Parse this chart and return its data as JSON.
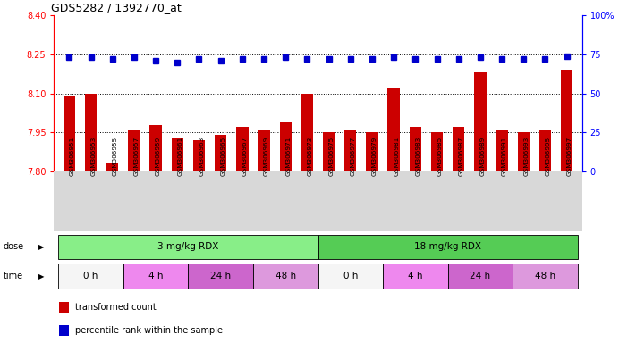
{
  "title": "GDS5282 / 1392770_at",
  "samples": [
    "GSM306951",
    "GSM306953",
    "GSM306955",
    "GSM306957",
    "GSM306959",
    "GSM306961",
    "GSM306963",
    "GSM306965",
    "GSM306967",
    "GSM306969",
    "GSM306971",
    "GSM306973",
    "GSM306975",
    "GSM306977",
    "GSM306979",
    "GSM306981",
    "GSM306983",
    "GSM306985",
    "GSM306987",
    "GSM306989",
    "GSM306991",
    "GSM306993",
    "GSM306995",
    "GSM306997"
  ],
  "bar_values": [
    8.09,
    8.1,
    7.83,
    7.96,
    7.98,
    7.93,
    7.92,
    7.94,
    7.97,
    7.96,
    7.99,
    8.1,
    7.95,
    7.96,
    7.95,
    8.12,
    7.97,
    7.95,
    7.97,
    8.18,
    7.96,
    7.95,
    7.96,
    8.19
  ],
  "percentile_values": [
    73,
    73,
    72,
    73,
    71,
    70,
    72,
    71,
    72,
    72,
    73,
    72,
    72,
    72,
    72,
    73,
    72,
    72,
    72,
    73,
    72,
    72,
    72,
    74
  ],
  "bar_color": "#cc0000",
  "percentile_color": "#0000cc",
  "ymin": 7.8,
  "ymax": 8.4,
  "yticks": [
    7.8,
    7.95,
    8.1,
    8.25,
    8.4
  ],
  "right_yticks": [
    0,
    25,
    50,
    75,
    100
  ],
  "right_yticklabels": [
    "0",
    "25",
    "50",
    "75",
    "100%"
  ],
  "hlines": [
    7.95,
    8.1,
    8.25
  ],
  "dose_groups": [
    {
      "label": "3 mg/kg RDX",
      "start": 0,
      "end": 11,
      "color": "#88ee88"
    },
    {
      "label": "18 mg/kg RDX",
      "start": 12,
      "end": 23,
      "color": "#55cc55"
    }
  ],
  "time_groups": [
    {
      "label": "0 h",
      "start": 0,
      "end": 2,
      "color": "#f5f5f5"
    },
    {
      "label": "4 h",
      "start": 3,
      "end": 5,
      "color": "#ee88ee"
    },
    {
      "label": "24 h",
      "start": 6,
      "end": 8,
      "color": "#cc66cc"
    },
    {
      "label": "48 h",
      "start": 9,
      "end": 11,
      "color": "#dd99dd"
    },
    {
      "label": "0 h",
      "start": 12,
      "end": 14,
      "color": "#f5f5f5"
    },
    {
      "label": "4 h",
      "start": 15,
      "end": 17,
      "color": "#ee88ee"
    },
    {
      "label": "24 h",
      "start": 18,
      "end": 20,
      "color": "#cc66cc"
    },
    {
      "label": "48 h",
      "start": 21,
      "end": 23,
      "color": "#dd99dd"
    }
  ],
  "legend_items": [
    {
      "label": "transformed count",
      "color": "#cc0000"
    },
    {
      "label": "percentile rank within the sample",
      "color": "#0000cc"
    }
  ],
  "fig_bg": "#ffffff",
  "plot_bg": "#ffffff",
  "xlabel_bg": "#d8d8d8"
}
